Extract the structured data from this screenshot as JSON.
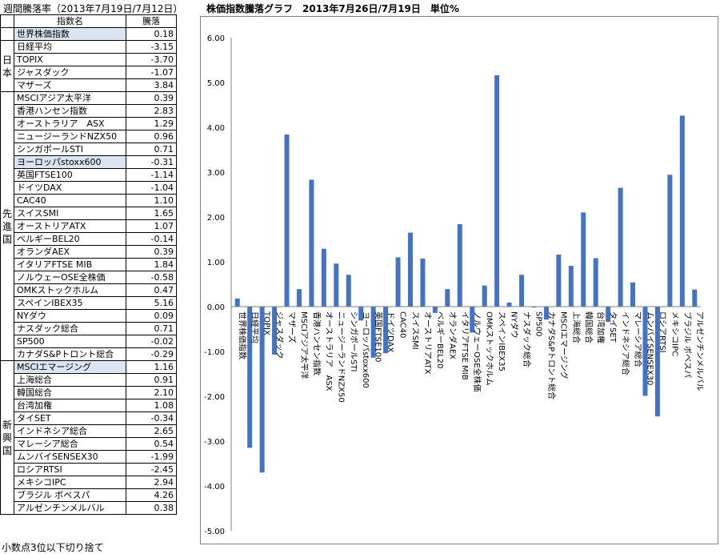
{
  "page_title": "週間騰落率（2013年7月19日/7月12日）",
  "chart_title": "株価指数騰落グラフ　2013年7月26日/7月19日　単位%",
  "table": {
    "col_name": "指数名",
    "col_change": "騰落",
    "groups": [
      {
        "label": "",
        "rows": [
          {
            "name": "世界株価指数",
            "value": "0.18",
            "highlight": true
          }
        ]
      },
      {
        "label": "日本",
        "rows": [
          {
            "name": "日経平均",
            "value": "-3.15"
          },
          {
            "name": "TOPIX",
            "value": "-3.70"
          },
          {
            "name": "ジャスダック",
            "value": "-1.07"
          },
          {
            "name": "マザーズ",
            "value": "3.84"
          }
        ]
      },
      {
        "label": "先進国",
        "rows": [
          {
            "name": "MSCIアジア太平洋",
            "value": "0.39"
          },
          {
            "name": "香港ハンセン指数",
            "value": "2.83"
          },
          {
            "name": "オーストラリア　ASX",
            "value": "1.29"
          },
          {
            "name": "ニュージーランドNZX50",
            "value": "0.96"
          },
          {
            "name": "シンガポールSTI",
            "value": "0.71"
          },
          {
            "name": "ヨーロッパstoxx600",
            "value": "-0.31",
            "highlight": true
          },
          {
            "name": "英国FTSE100",
            "value": "-1.14"
          },
          {
            "name": "ドイツDAX",
            "value": "-1.04"
          },
          {
            "name": "CAC40",
            "value": "1.10"
          },
          {
            "name": "スイスSMI",
            "value": "1.65"
          },
          {
            "name": "オーストリアATX",
            "value": "1.07"
          },
          {
            "name": "ベルギーBEL20",
            "value": "-0.14"
          },
          {
            "name": "オランダAEX",
            "value": "0.39"
          },
          {
            "name": "イタリアFTSE MIB",
            "value": "1.84"
          },
          {
            "name": "ノルウェーOSE全株価",
            "value": "-0.58"
          },
          {
            "name": "OMKストックホルム",
            "value": "0.47"
          },
          {
            "name": "スペインIBEX35",
            "value": "5.16"
          },
          {
            "name": "NYダウ",
            "value": "0.09"
          },
          {
            "name": "ナスダック総合",
            "value": "0.71"
          },
          {
            "name": "SP500",
            "value": "-0.02"
          },
          {
            "name": "カナダS&Pトロント総合",
            "value": "-0.29"
          }
        ]
      },
      {
        "label": "新興国",
        "rows": [
          {
            "name": "MSCIエマージング",
            "value": "1.16",
            "highlight": true
          },
          {
            "name": "上海総合",
            "value": "0.91"
          },
          {
            "name": "韓国総合",
            "value": "2.10"
          },
          {
            "name": "台湾加権",
            "value": "1.08"
          },
          {
            "name": "タイSET",
            "value": "-0.34"
          },
          {
            "name": "インドネシア総合",
            "value": "2.65"
          },
          {
            "name": "マレーシア総合",
            "value": "0.54"
          },
          {
            "name": "ムンバイSENSEX30",
            "value": "-1.99"
          },
          {
            "name": "ロシアRTSI",
            "value": "-2.45"
          },
          {
            "name": "メキシコIPC",
            "value": "2.94"
          },
          {
            "name": "ブラジル ボベスパ",
            "value": "4.26"
          },
          {
            "name": "アルゼンチンメルバル",
            "value": "0.38"
          }
        ]
      }
    ]
  },
  "footnote": "小数点3位以下切り捨て",
  "chart_data": {
    "type": "bar",
    "title": "株価指数騰落グラフ　2013年7月26日/7月19日　単位%",
    "categories": [
      "世界株価指数",
      "日経平均",
      "TOPIX",
      "ジャスダック",
      "マザーズ",
      "MSCIアジア太平洋",
      "香港ハンセン指数",
      "オーストラリア　ASX",
      "ニュージーランドNZX50",
      "シンガポールSTI",
      "ヨーロッパstoxx600",
      "英国FTSE100",
      "ドイツDAX",
      "CAC40",
      "スイスSMI",
      "オーストリアATX",
      "ベルギーBEL20",
      "オランダAEX",
      "イタリアFTSE MIB",
      "ノルウェーOSE全株価",
      "OMKストックホルム",
      "スペインIBEX35",
      "NYダウ",
      "ナスダック総合",
      "SP500",
      "カナダS&Pトロント総合",
      "MSCIエマージング",
      "上海総合",
      "韓国総合",
      "台湾加権",
      "タイSET",
      "インドネシア総合",
      "マレーシア総合",
      "ムンバイSENSEX30",
      "ロシアRTSI",
      "メキシコIPC",
      "ブラジル ボベスパ",
      "アルゼンチンメルバル"
    ],
    "values": [
      0.18,
      -3.15,
      -3.7,
      -1.07,
      3.84,
      0.39,
      2.83,
      1.29,
      0.96,
      0.71,
      -0.31,
      -1.14,
      -1.04,
      1.1,
      1.65,
      1.07,
      -0.14,
      0.39,
      1.84,
      -0.58,
      0.47,
      5.16,
      0.09,
      0.71,
      -0.02,
      -0.29,
      1.16,
      0.91,
      2.1,
      1.08,
      -0.34,
      2.65,
      0.54,
      -1.99,
      -2.45,
      2.94,
      4.26,
      0.38
    ],
    "yticks": [
      "6.00",
      "5.00",
      "4.00",
      "3.00",
      "2.00",
      "1.00",
      "0.00",
      "-1.00",
      "-2.00",
      "-3.00",
      "-4.00",
      "-5.00"
    ],
    "ylim": [
      -5,
      6
    ],
    "bar_color": "#4472c4",
    "grid": false
  }
}
